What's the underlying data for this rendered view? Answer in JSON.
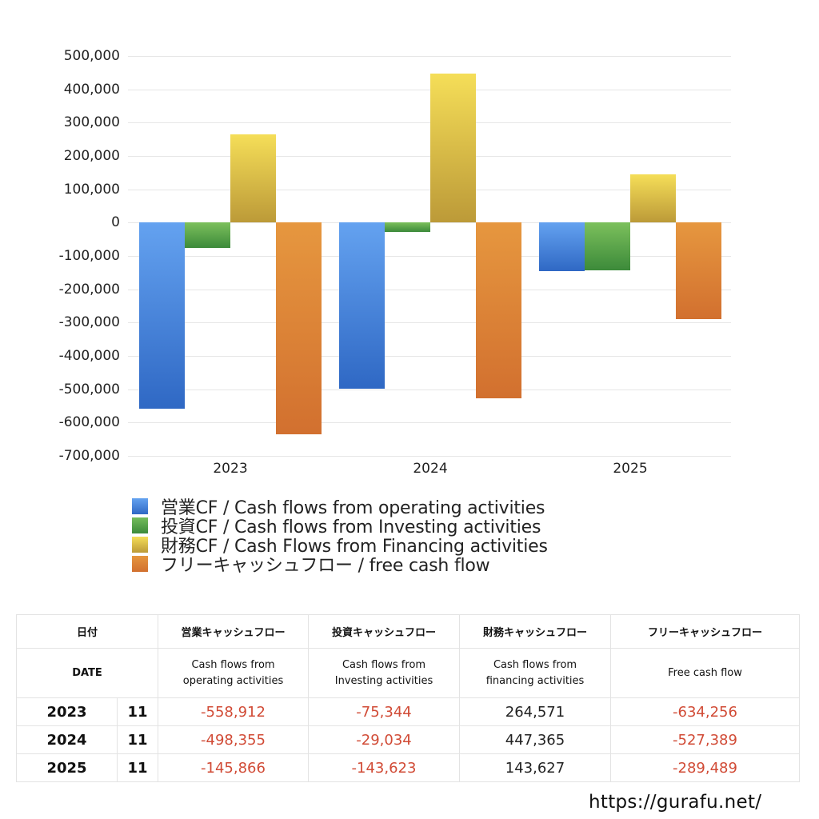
{
  "chart_data": {
    "type": "bar",
    "title": "",
    "xlabel": "",
    "ylabel": "",
    "categories": [
      "2023",
      "2024",
      "2025"
    ],
    "series": [
      {
        "name": "営業CF / Cash flows from operating activities",
        "values": [
          -558912,
          -498355,
          -145866
        ],
        "color": "#4a86e0"
      },
      {
        "name": "投資CF / Cash flows from Investing activities",
        "values": [
          -75344,
          -29034,
          -143623
        ],
        "color": "#52a446"
      },
      {
        "name": "財務CF / Cash Flows from Financing activities",
        "values": [
          264571,
          447365,
          143627
        ],
        "color": "#dcc040"
      },
      {
        "name": "フリーキャッシュフロー / free cash flow",
        "values": [
          -634256,
          -527389,
          -289489
        ],
        "color": "#df8a36"
      }
    ],
    "ylim": [
      -700000,
      500000
    ],
    "yticks": [
      "500,000",
      "400,000",
      "300,000",
      "200,000",
      "100,000",
      "0",
      "-100,000",
      "-200,000",
      "-300,000",
      "-400,000",
      "-500,000",
      "-600,000",
      "-700,000"
    ],
    "grid": true,
    "legend_position": "bottom"
  },
  "legend": {
    "items": [
      {
        "label": "営業CF / Cash flows from operating activities"
      },
      {
        "label": "投資CF / Cash flows from Investing activities"
      },
      {
        "label": "財務CF / Cash Flows from Financing activities"
      },
      {
        "label": "フリーキャッシュフロー / free cash flow"
      }
    ]
  },
  "table": {
    "header_jp": {
      "date": "日付",
      "operating": "営業キャッシュフロー",
      "investing": "投資キャッシュフロー",
      "financing": "財務キャッシュフロー",
      "free": "フリーキャッシュフロー"
    },
    "header_en": {
      "date": "DATE",
      "operating_1": "Cash flows from",
      "operating_2": "operating activities",
      "investing_1": "Cash flows from",
      "investing_2": "Investing activities",
      "financing_1": "Cash flows from",
      "financing_2": "financing activities",
      "free": "Free cash flow"
    },
    "rows": [
      {
        "year": "2023",
        "month": "11",
        "operating": "-558,912",
        "investing": "-75,344",
        "financing": "264,571",
        "free": "-634,256"
      },
      {
        "year": "2024",
        "month": "11",
        "operating": "-498,355",
        "investing": "-29,034",
        "financing": "447,365",
        "free": "-527,389"
      },
      {
        "year": "2025",
        "month": "11",
        "operating": "-145,866",
        "investing": "-143,623",
        "financing": "143,627",
        "free": "-289,489"
      }
    ]
  },
  "footer": {
    "url": "https://gurafu.net/"
  }
}
